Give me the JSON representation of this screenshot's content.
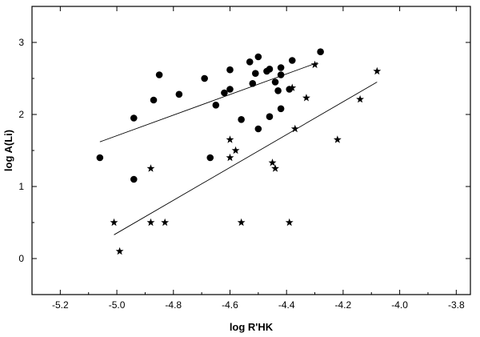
{
  "chart_data": {
    "type": "scatter",
    "xlabel": "log R'HK",
    "ylabel": "log A(Li)",
    "xlim": [
      -5.3,
      -3.75
    ],
    "ylim": [
      -0.5,
      3.5
    ],
    "xticks": [
      "-5.2",
      "-5.0",
      "-4.8",
      "-4.6",
      "-4.4",
      "-4.2",
      "-4.0",
      "-3.8"
    ],
    "xtick_values": [
      -5.2,
      -5.0,
      -4.8,
      -4.6,
      -4.4,
      -4.2,
      -4.0,
      -3.8
    ],
    "yticks": [
      "0",
      "1",
      "2",
      "3"
    ],
    "ytick_values": [
      0,
      1,
      2,
      3
    ],
    "grid": false,
    "series": [
      {
        "marker": "circle",
        "points": [
          [
            -5.06,
            1.4
          ],
          [
            -4.94,
            1.95
          ],
          [
            -4.94,
            1.1
          ],
          [
            -4.87,
            2.2
          ],
          [
            -4.85,
            2.55
          ],
          [
            -4.78,
            2.28
          ],
          [
            -4.69,
            2.5
          ],
          [
            -4.67,
            1.4
          ],
          [
            -4.65,
            2.13
          ],
          [
            -4.62,
            2.3
          ],
          [
            -4.6,
            2.35
          ],
          [
            -4.6,
            2.62
          ],
          [
            -4.56,
            1.93
          ],
          [
            -4.53,
            2.73
          ],
          [
            -4.52,
            2.43
          ],
          [
            -4.51,
            2.57
          ],
          [
            -4.5,
            2.8
          ],
          [
            -4.5,
            1.8
          ],
          [
            -4.47,
            2.6
          ],
          [
            -4.46,
            1.97
          ],
          [
            -4.46,
            2.63
          ],
          [
            -4.44,
            2.45
          ],
          [
            -4.43,
            2.33
          ],
          [
            -4.42,
            2.08
          ],
          [
            -4.42,
            2.55
          ],
          [
            -4.42,
            2.65
          ],
          [
            -4.39,
            2.35
          ],
          [
            -4.38,
            2.75
          ],
          [
            -4.28,
            2.87
          ]
        ]
      },
      {
        "marker": "star",
        "points": [
          [
            -5.01,
            0.5
          ],
          [
            -4.99,
            0.1
          ],
          [
            -4.88,
            0.5
          ],
          [
            -4.88,
            1.25
          ],
          [
            -4.83,
            0.5
          ],
          [
            -4.6,
            1.65
          ],
          [
            -4.6,
            1.4
          ],
          [
            -4.58,
            1.5
          ],
          [
            -4.56,
            0.5
          ],
          [
            -4.45,
            1.33
          ],
          [
            -4.44,
            1.25
          ],
          [
            -4.39,
            0.5
          ],
          [
            -4.38,
            2.37
          ],
          [
            -4.37,
            1.8
          ],
          [
            -4.33,
            2.23
          ],
          [
            -4.3,
            2.69
          ],
          [
            -4.22,
            1.65
          ],
          [
            -4.14,
            2.21
          ],
          [
            -4.08,
            2.6
          ]
        ]
      }
    ],
    "fit_lines": [
      {
        "x": [
          -5.06,
          -4.29
        ],
        "y": [
          1.62,
          2.72
        ]
      },
      {
        "x": [
          -5.01,
          -4.08
        ],
        "y": [
          0.33,
          2.45
        ]
      }
    ]
  }
}
